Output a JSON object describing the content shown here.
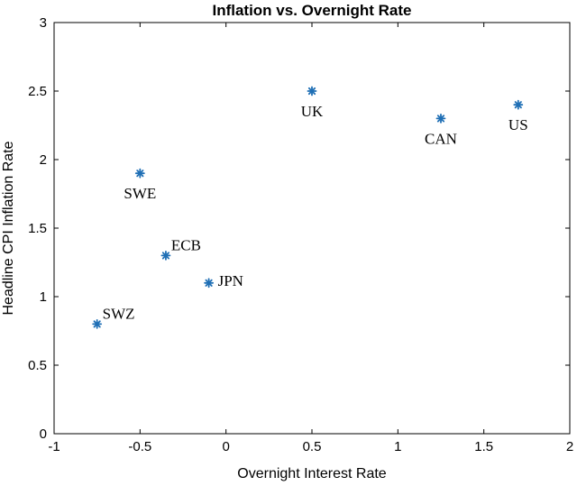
{
  "chart_data": {
    "type": "scatter",
    "title": "Inflation vs. Overnight Rate",
    "xlabel": "Overnight Interest Rate",
    "ylabel": "Headline CPI Inflation Rate",
    "xlim": [
      -1,
      2
    ],
    "ylim": [
      0,
      3
    ],
    "xticks": [
      -1,
      -0.5,
      0,
      0.5,
      1,
      1.5,
      2
    ],
    "xtick_labels": [
      "-1",
      "-0.5",
      "0",
      "0.5",
      "1",
      "1.5",
      "2"
    ],
    "yticks": [
      0,
      0.5,
      1,
      1.5,
      2,
      2.5,
      3
    ],
    "ytick_labels": [
      "0",
      "0.5",
      "1",
      "1.5",
      "2",
      "2.5",
      "3"
    ],
    "grid": false,
    "marker": "asterisk",
    "marker_color": "#1f6fb5",
    "points": [
      {
        "label": "SWZ",
        "x": -0.75,
        "y": 0.8,
        "label_pos": "upper-right"
      },
      {
        "label": "SWE",
        "x": -0.5,
        "y": 1.9,
        "label_pos": "below"
      },
      {
        "label": "ECB",
        "x": -0.35,
        "y": 1.3,
        "label_pos": "upper-right"
      },
      {
        "label": "JPN",
        "x": -0.1,
        "y": 1.1,
        "label_pos": "right"
      },
      {
        "label": "UK",
        "x": 0.5,
        "y": 2.5,
        "label_pos": "below"
      },
      {
        "label": "CAN",
        "x": 1.25,
        "y": 2.3,
        "label_pos": "below"
      },
      {
        "label": "US",
        "x": 1.7,
        "y": 2.4,
        "label_pos": "below"
      }
    ]
  }
}
